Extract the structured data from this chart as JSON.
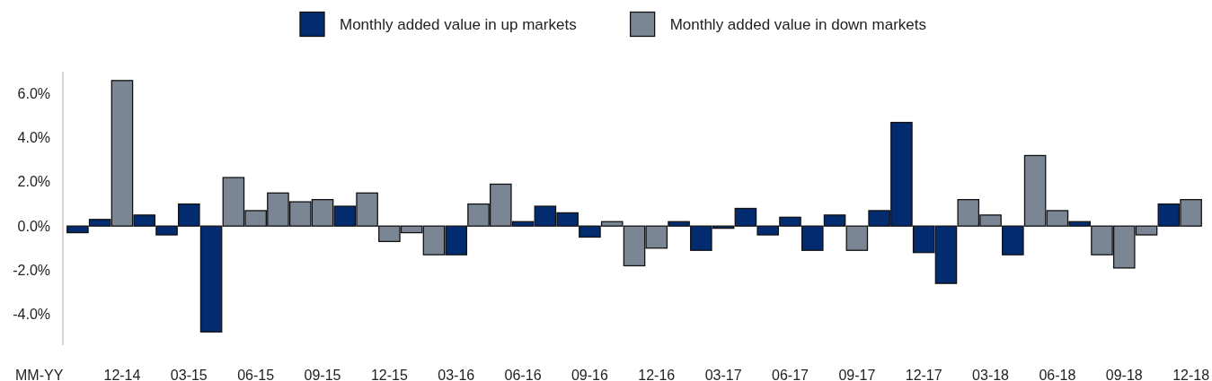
{
  "chart_data": {
    "type": "bar",
    "stacked": true,
    "legend": "top",
    "xlabel": "MM-YY",
    "categories": [
      null,
      null,
      "12-14",
      null,
      null,
      "03-15",
      null,
      null,
      "06-15",
      null,
      null,
      "09-15",
      null,
      null,
      "12-15",
      null,
      null,
      "03-16",
      null,
      null,
      "06-16",
      null,
      null,
      "09-16",
      null,
      null,
      "12-16",
      null,
      null,
      "03-17",
      null,
      null,
      "06-17",
      null,
      null,
      "09-17",
      null,
      null,
      "12-17",
      null,
      null,
      "03-18",
      null,
      null,
      "06-18",
      null,
      null,
      "09-18",
      null,
      null,
      "12-18"
    ],
    "ylim": [
      -5.4,
      7
    ],
    "yticks": [
      {
        "value": -4,
        "label": "-4.0%"
      },
      {
        "value": -2,
        "label": "-2.0%"
      },
      {
        "value": 0,
        "label": "0.0%"
      },
      {
        "value": 2,
        "label": "2.0%"
      },
      {
        "value": 4,
        "label": "4.0%"
      },
      {
        "value": 6,
        "label": "6.0%"
      }
    ],
    "series": [
      {
        "name": "Monthly added value in up markets",
        "color": "#032b6f",
        "values": [
          -0.3,
          0.3,
          null,
          0.5,
          -0.4,
          1.0,
          -4.8,
          null,
          null,
          null,
          null,
          null,
          0.9,
          null,
          null,
          null,
          null,
          -1.3,
          null,
          null,
          0.2,
          0.9,
          0.6,
          -0.5,
          null,
          null,
          null,
          0.2,
          -1.1,
          -0.1,
          0.8,
          -0.4,
          0.4,
          -1.1,
          0.5,
          null,
          0.7,
          4.7,
          -1.2,
          -2.6,
          null,
          null,
          -1.3,
          null,
          null,
          0.2,
          null,
          null,
          null,
          1.0,
          null
        ]
      },
      {
        "name": "Monthly added value in down markets",
        "color": "#7a8694",
        "values": [
          null,
          null,
          6.6,
          null,
          null,
          null,
          null,
          2.2,
          0.7,
          1.5,
          1.1,
          1.2,
          null,
          1.5,
          -0.7,
          -0.3,
          -1.3,
          null,
          1.0,
          1.9,
          null,
          null,
          null,
          null,
          0.2,
          -1.8,
          -1.0,
          null,
          null,
          null,
          null,
          null,
          null,
          null,
          null,
          -1.1,
          null,
          null,
          null,
          null,
          1.2,
          0.5,
          null,
          3.2,
          0.7,
          null,
          -1.3,
          -1.9,
          -0.4,
          null,
          1.2
        ]
      }
    ]
  }
}
